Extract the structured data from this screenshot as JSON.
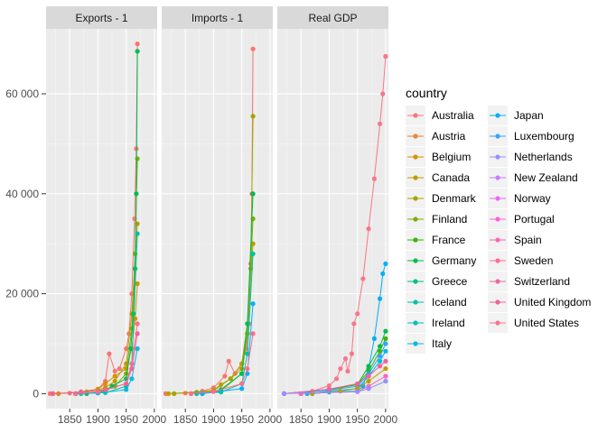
{
  "chart_data": {
    "type": "line",
    "facet_by": "variable",
    "x_ticks": [
      1850,
      1900,
      1950,
      2000
    ],
    "y_ticks": [
      0,
      20000,
      40000,
      60000
    ],
    "y_tick_labels": [
      "0",
      "20 000",
      "40 000",
      "60 000"
    ],
    "xlim": [
      1808,
      2005
    ],
    "ylim": [
      -3000,
      73000
    ],
    "shared_y": true,
    "grid": true,
    "legend": {
      "title": "country",
      "placement": "right",
      "columns": 2,
      "entries": [
        {
          "name": "Australia",
          "color": "#F8766D"
        },
        {
          "name": "Austria",
          "color": "#EA8331"
        },
        {
          "name": "Belgium",
          "color": "#D89000"
        },
        {
          "name": "Canada",
          "color": "#C09B00"
        },
        {
          "name": "Denmark",
          "color": "#A3A500"
        },
        {
          "name": "Finland",
          "color": "#7CAE00"
        },
        {
          "name": "France",
          "color": "#39B600"
        },
        {
          "name": "Germany",
          "color": "#00BB4E"
        },
        {
          "name": "Greece",
          "color": "#00BF7D"
        },
        {
          "name": "Iceland",
          "color": "#00C1A3"
        },
        {
          "name": "Ireland",
          "color": "#00BFC4"
        },
        {
          "name": "Italy",
          "color": "#00BAE0"
        },
        {
          "name": "Japan",
          "color": "#00B0F6"
        },
        {
          "name": "Luxembourg",
          "color": "#35A2FF"
        },
        {
          "name": "Netherlands",
          "color": "#9590FF"
        },
        {
          "name": "New Zealand",
          "color": "#C77CFF"
        },
        {
          "name": "Norway",
          "color": "#E76BF3"
        },
        {
          "name": "Portugal",
          "color": "#FA62DB"
        },
        {
          "name": "Spain",
          "color": "#FF62BC"
        },
        {
          "name": "Sweden",
          "color": "#FF6C91"
        },
        {
          "name": "Switzerland",
          "color": "#E86BA0"
        },
        {
          "name": "United Kingdom",
          "color": "#F2619A"
        },
        {
          "name": "United States",
          "color": "#F8768B"
        }
      ]
    },
    "panels": [
      {
        "title": "Exports - 1",
        "series": [
          {
            "name": "Australia",
            "x": [
              1815,
              1850,
              1880,
              1900,
              1913,
              1920,
              1930,
              1938,
              1950,
              1955,
              1960,
              1965,
              1968,
              1970
            ],
            "values": [
              0,
              100,
              400,
              900,
              2500,
              8000,
              4500,
              5000,
              9000,
              12000,
              20000,
              35000,
              49000,
              70000
            ]
          },
          {
            "name": "Belgium",
            "x": [
              1830,
              1870,
              1900,
              1913,
              1930,
              1950,
              1960,
              1966,
              1970
            ],
            "values": [
              0,
              400,
              900,
              2000,
              3500,
              5000,
              9000,
              15000,
              22000
            ]
          },
          {
            "name": "Canada",
            "x": [
              1820,
              1870,
              1900,
              1913,
              1930,
              1950,
              1960,
              1970
            ],
            "values": [
              0,
              300,
              700,
              1200,
              2500,
              6000,
              16000,
              34000
            ]
          },
          {
            "name": "Finland",
            "x": [
              1860,
              1900,
              1913,
              1930,
              1950,
              1960,
              1966,
              1970
            ],
            "values": [
              0,
              300,
              500,
              1500,
              4000,
              13000,
              28000,
              47000
            ]
          },
          {
            "name": "Germany",
            "x": [
              1880,
              1900,
              1913,
              1925,
              1950,
              1958,
              1963,
              1966,
              1968,
              1970
            ],
            "values": [
              0,
              300,
              700,
              1500,
              3000,
              9000,
              16000,
              25000,
              40000,
              68500
            ]
          },
          {
            "name": "Iceland",
            "x": [
              1870,
              1913,
              1950,
              1960,
              1970
            ],
            "values": [
              0,
              200,
              1500,
              6000,
              32000
            ]
          },
          {
            "name": "Italy",
            "x": [
              1861,
              1900,
              1950,
              1960,
              1970
            ],
            "values": [
              0,
              100,
              800,
              3000,
              9000
            ]
          },
          {
            "name": "Sweden",
            "x": [
              1860,
              1900,
              1950,
              1960,
              1970
            ],
            "values": [
              0,
              400,
              2000,
              6000,
              14000
            ]
          },
          {
            "name": "United Kingdom",
            "x": [
              1820,
              1870,
              1913,
              1950,
              1960,
              1970
            ],
            "values": [
              0,
              300,
              800,
              2000,
              5000,
              12000
            ]
          }
        ]
      },
      {
        "title": "Imports - 1",
        "series": [
          {
            "name": "Australia",
            "x": [
              1815,
              1850,
              1880,
              1900,
              1920,
              1927,
              1938,
              1950,
              1958,
              1963,
              1966,
              1968,
              1970
            ],
            "values": [
              0,
              100,
              500,
              1200,
              3500,
              6500,
              4000,
              6000,
              9000,
              14000,
              26000,
              40000,
              69000
            ]
          },
          {
            "name": "Canada",
            "x": [
              1820,
              1870,
              1900,
              1913,
              1930,
              1950,
              1960,
              1970
            ],
            "values": [
              0,
              300,
              700,
              1800,
              3000,
              6000,
              14000,
              30000
            ]
          },
          {
            "name": "Denmark",
            "x": [
              1830,
              1900,
              1930,
              1950,
              1960,
              1966,
              1970
            ],
            "values": [
              0,
              600,
              3000,
              5000,
              12000,
              25000,
              55500
            ]
          },
          {
            "name": "Finland",
            "x": [
              1860,
              1913,
              1950,
              1960,
              1970
            ],
            "values": [
              0,
              600,
              4000,
              12000,
              35000
            ]
          },
          {
            "name": "Germany",
            "x": [
              1880,
              1913,
              1950,
              1960,
              1970
            ],
            "values": [
              0,
              800,
              4000,
              14000,
              40000
            ]
          },
          {
            "name": "Iceland",
            "x": [
              1870,
              1913,
              1950,
              1960,
              1970
            ],
            "values": [
              0,
              300,
              2000,
              8000,
              28000
            ]
          },
          {
            "name": "Japan",
            "x": [
              1880,
              1950,
              1960,
              1970
            ],
            "values": [
              0,
              1000,
              4000,
              18000
            ]
          },
          {
            "name": "Sweden",
            "x": [
              1860,
              1900,
              1950,
              1960,
              1970
            ],
            "values": [
              0,
              400,
              2000,
              5000,
              12000
            ]
          }
        ]
      },
      {
        "title": "Real GDP",
        "series": [
          {
            "name": "United States",
            "x": [
              1820,
              1870,
              1900,
              1913,
              1920,
              1929,
              1933,
              1940,
              1944,
              1950,
              1960,
              1970,
              1980,
              1990,
              1995,
              2000
            ],
            "values": [
              0,
              500,
              1600,
              3000,
              5000,
              7000,
              4500,
              8000,
              14000,
              16000,
              23000,
              33000,
              43000,
              54000,
              60000,
              67500
            ]
          },
          {
            "name": "Japan",
            "x": [
              1870,
              1900,
              1950,
              1960,
              1970,
              1980,
              1990,
              1995,
              2000
            ],
            "values": [
              0,
              300,
              500,
              1500,
              5000,
              11000,
              19000,
              24000,
              26000
            ]
          },
          {
            "name": "Germany",
            "x": [
              1850,
              1900,
              1950,
              1970,
              1990,
              2000
            ],
            "values": [
              0,
              900,
              1800,
              5500,
              9500,
              12500
            ]
          },
          {
            "name": "France",
            "x": [
              1820,
              1900,
              1950,
              1970,
              1990,
              2000
            ],
            "values": [
              0,
              800,
              1800,
              4500,
              8500,
              11000
            ]
          },
          {
            "name": "Luxembourg",
            "x": [
              1820,
              1900,
              1950,
              1970,
              1990,
              2000
            ],
            "values": [
              0,
              700,
              1500,
              4000,
              7500,
              10000
            ]
          },
          {
            "name": "Italy",
            "x": [
              1861,
              1900,
              1950,
              1970,
              1990,
              2000
            ],
            "values": [
              0,
              500,
              1000,
              3500,
              6500,
              8500
            ]
          },
          {
            "name": "United Kingdom",
            "x": [
              1820,
              1900,
              1950,
              1970,
              1990,
              2000
            ],
            "values": [
              0,
              900,
              2000,
              3500,
              5500,
              6500
            ]
          },
          {
            "name": "Canada",
            "x": [
              1870,
              1920,
              1950,
              1970,
              2000
            ],
            "values": [
              0,
              500,
              1000,
              2500,
              5000
            ]
          },
          {
            "name": "Spain",
            "x": [
              1850,
              1950,
              1970,
              2000
            ],
            "values": [
              0,
              400,
              1500,
              3500
            ]
          },
          {
            "name": "Netherlands",
            "x": [
              1820,
              1950,
              1970,
              2000
            ],
            "values": [
              0,
              400,
              1000,
              2500
            ]
          }
        ]
      }
    ]
  }
}
